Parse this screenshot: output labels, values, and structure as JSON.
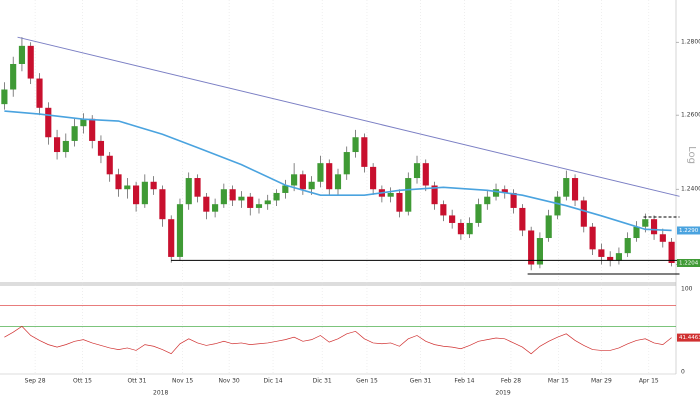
{
  "chart_data": {
    "type": "candlestick",
    "log_scale": true,
    "axis_label": "Log",
    "up_color": "#3f9a35",
    "down_color": "#c8102e",
    "xlim": [
      -0.5,
      76.5
    ],
    "xticks": [
      {
        "value": 3.5,
        "label": "Sep 28"
      },
      {
        "value": 8.9,
        "label": "Ott 15"
      },
      {
        "value": 15.1,
        "label": "Ott 31"
      },
      {
        "value": 20.3,
        "label": "Nov 15"
      },
      {
        "value": 25.6,
        "label": "Nov 30"
      },
      {
        "value": 30.6,
        "label": "Dic 14"
      },
      {
        "value": 36.2,
        "label": "Dic 31"
      },
      {
        "value": 41.3,
        "label": "Gen 15"
      },
      {
        "value": 47.4,
        "label": "Gen 31"
      },
      {
        "value": 52.4,
        "label": "Feb 14"
      },
      {
        "value": 57.7,
        "label": "Feb 28"
      },
      {
        "value": 63.1,
        "label": "Mar 15"
      },
      {
        "value": 68,
        "label": "Mar 29"
      },
      {
        "value": 73.4,
        "label": "Apr 15"
      }
    ],
    "year_ticks": [
      {
        "value": 17.8,
        "label": "2018"
      },
      {
        "value": 56.8,
        "label": "2019"
      }
    ],
    "ylim": [
      1.2154,
      1.2895
    ],
    "yticks": [
      {
        "value": 1.28,
        "label": "1.2800"
      },
      {
        "value": 1.26,
        "label": "1.2600"
      },
      {
        "value": 1.24,
        "label": "1.2400"
      },
      {
        "value": 1.22,
        "label": "1.2200"
      }
    ],
    "ohlc": [
      [
        1.263,
        1.269,
        1.2615,
        1.267
      ],
      [
        1.267,
        1.276,
        1.265,
        1.274
      ],
      [
        1.274,
        1.2814,
        1.272,
        1.279
      ],
      [
        1.279,
        1.28,
        1.2685,
        1.27
      ],
      [
        1.27,
        1.2715,
        1.26,
        1.262
      ],
      [
        1.262,
        1.2635,
        1.252,
        1.254
      ],
      [
        1.254,
        1.256,
        1.248,
        1.25
      ],
      [
        1.25,
        1.255,
        1.2485,
        1.253
      ],
      [
        1.253,
        1.259,
        1.2515,
        1.257
      ],
      [
        1.257,
        1.2605,
        1.255,
        1.259
      ],
      [
        1.259,
        1.26,
        1.251,
        1.253
      ],
      [
        1.253,
        1.2545,
        1.247,
        1.249
      ],
      [
        1.249,
        1.25,
        1.242,
        1.244
      ],
      [
        1.244,
        1.2455,
        1.238,
        1.24
      ],
      [
        1.24,
        1.243,
        1.2375,
        1.241
      ],
      [
        1.241,
        1.242,
        1.234,
        1.236
      ],
      [
        1.236,
        1.244,
        1.235,
        1.242
      ],
      [
        1.242,
        1.2435,
        1.2385,
        1.24
      ],
      [
        1.24,
        1.241,
        1.23,
        1.232
      ],
      [
        1.232,
        1.233,
        1.2205,
        1.222
      ],
      [
        1.222,
        1.2375,
        1.221,
        1.236
      ],
      [
        1.236,
        1.2445,
        1.2345,
        1.243
      ],
      [
        1.243,
        1.244,
        1.2365,
        1.238
      ],
      [
        1.238,
        1.239,
        1.232,
        1.234
      ],
      [
        1.234,
        1.2375,
        1.2325,
        1.236
      ],
      [
        1.236,
        1.2415,
        1.235,
        1.24
      ],
      [
        1.24,
        1.241,
        1.2355,
        1.237
      ],
      [
        1.237,
        1.2395,
        1.235,
        1.238
      ],
      [
        1.238,
        1.239,
        1.233,
        1.235
      ],
      [
        1.235,
        1.2375,
        1.2335,
        1.236
      ],
      [
        1.236,
        1.2385,
        1.2345,
        1.237
      ],
      [
        1.237,
        1.24,
        1.2355,
        1.239
      ],
      [
        1.239,
        1.2425,
        1.2375,
        1.241
      ],
      [
        1.241,
        1.247,
        1.2395,
        1.244
      ],
      [
        1.244,
        1.245,
        1.2385,
        1.24
      ],
      [
        1.24,
        1.2435,
        1.2385,
        1.242
      ],
      [
        1.242,
        1.249,
        1.2405,
        1.247
      ],
      [
        1.247,
        1.248,
        1.2385,
        1.24
      ],
      [
        1.24,
        1.2455,
        1.2385,
        1.244
      ],
      [
        1.244,
        1.2515,
        1.2425,
        1.25
      ],
      [
        1.25,
        1.256,
        1.2485,
        1.254
      ],
      [
        1.254,
        1.255,
        1.2445,
        1.246
      ],
      [
        1.246,
        1.247,
        1.2385,
        1.24
      ],
      [
        1.24,
        1.241,
        1.2365,
        1.238
      ],
      [
        1.238,
        1.2405,
        1.2365,
        1.239
      ],
      [
        1.239,
        1.24,
        1.2325,
        1.234
      ],
      [
        1.234,
        1.2445,
        1.233,
        1.243
      ],
      [
        1.243,
        1.249,
        1.2415,
        1.247
      ],
      [
        1.247,
        1.248,
        1.2395,
        1.241
      ],
      [
        1.241,
        1.242,
        1.2345,
        1.236
      ],
      [
        1.236,
        1.237,
        1.2315,
        1.233
      ],
      [
        1.233,
        1.2345,
        1.2295,
        1.231
      ],
      [
        1.231,
        1.232,
        1.2265,
        1.228
      ],
      [
        1.228,
        1.2325,
        1.227,
        1.231
      ],
      [
        1.231,
        1.2375,
        1.23,
        1.236
      ],
      [
        1.236,
        1.2395,
        1.2345,
        1.238
      ],
      [
        1.238,
        1.2415,
        1.237,
        1.24
      ],
      [
        1.24,
        1.241,
        1.2375,
        1.239
      ],
      [
        1.239,
        1.24,
        1.2335,
        1.235
      ],
      [
        1.235,
        1.236,
        1.2275,
        1.229
      ],
      [
        1.229,
        1.23,
        1.2185,
        1.22
      ],
      [
        1.22,
        1.2285,
        1.219,
        1.227
      ],
      [
        1.227,
        1.2345,
        1.226,
        1.233
      ],
      [
        1.233,
        1.2395,
        1.232,
        1.238
      ],
      [
        1.238,
        1.245,
        1.237,
        1.243
      ],
      [
        1.243,
        1.244,
        1.2355,
        1.237
      ],
      [
        1.237,
        1.238,
        1.2285,
        1.23
      ],
      [
        1.23,
        1.231,
        1.2225,
        1.224
      ],
      [
        1.224,
        1.2255,
        1.22,
        1.222
      ],
      [
        1.222,
        1.2235,
        1.2195,
        1.221
      ],
      [
        1.221,
        1.2245,
        1.22,
        1.223
      ],
      [
        1.223,
        1.2285,
        1.222,
        1.227
      ],
      [
        1.227,
        1.2315,
        1.226,
        1.23
      ],
      [
        1.23,
        1.2335,
        1.2285,
        1.232
      ],
      [
        1.232,
        1.233,
        1.2265,
        1.228
      ],
      [
        1.228,
        1.2295,
        1.2245,
        1.226
      ],
      [
        1.226,
        1.227,
        1.2195,
        1.2204
      ]
    ],
    "last_label": {
      "value": 1.2204,
      "label": "1.2204"
    },
    "ma": {
      "color": "#4aa3df",
      "x": [
        0,
        4,
        9,
        13,
        18,
        22,
        27,
        32,
        36,
        41,
        45,
        50,
        55,
        59,
        64,
        68,
        73,
        76
      ],
      "values": [
        1.2611,
        1.2603,
        1.2589,
        1.2584,
        1.2548,
        1.2512,
        1.2466,
        1.2411,
        1.2384,
        1.2384,
        1.2397,
        1.2405,
        1.2397,
        1.2384,
        1.2356,
        1.2329,
        1.2293,
        1.229
      ],
      "last_label": {
        "value": 1.229,
        "label": "1.2290"
      }
    },
    "lines": [
      {
        "x": [
          1.5,
          76.9
        ],
        "y": [
          1.2814,
          1.2381
        ],
        "color": "#7b7fc4",
        "dashed": false
      },
      {
        "x": [
          19,
          76.9
        ],
        "y": [
          1.2211,
          1.2211
        ],
        "color": "#000000",
        "dashed": false
      },
      {
        "x": [
          59.6,
          76.9
        ],
        "y": [
          1.2175,
          1.2175
        ],
        "color": "#000000",
        "dashed": false
      },
      {
        "x": [
          72.8,
          76.9
        ],
        "y": [
          1.2326,
          1.2326
        ],
        "color": "#000000",
        "dashed": true
      }
    ],
    "sub": {
      "ylim": [
        0,
        100
      ],
      "yticks": [
        100,
        0
      ],
      "levels": [
        {
          "value": 80,
          "color": "#e05050"
        },
        {
          "value": 55,
          "color": "#50b050"
        }
      ],
      "color": "#d03030",
      "values": [
        42,
        48,
        55,
        44,
        38,
        33,
        30,
        33,
        37,
        39,
        35,
        32,
        29,
        27,
        29,
        26,
        33,
        31,
        27,
        22,
        34,
        40,
        35,
        32,
        34,
        37,
        34,
        35,
        33,
        34,
        35,
        37,
        39,
        42,
        37,
        39,
        44,
        36,
        40,
        46,
        49,
        40,
        35,
        34,
        35,
        31,
        40,
        44,
        37,
        33,
        31,
        30,
        28,
        32,
        37,
        39,
        41,
        40,
        35,
        30,
        22,
        31,
        37,
        42,
        46,
        38,
        32,
        27,
        26,
        26,
        29,
        34,
        38,
        40,
        35,
        33,
        41.4463
      ],
      "last_label": {
        "value": 41.4463,
        "label": "41.4463"
      }
    }
  }
}
